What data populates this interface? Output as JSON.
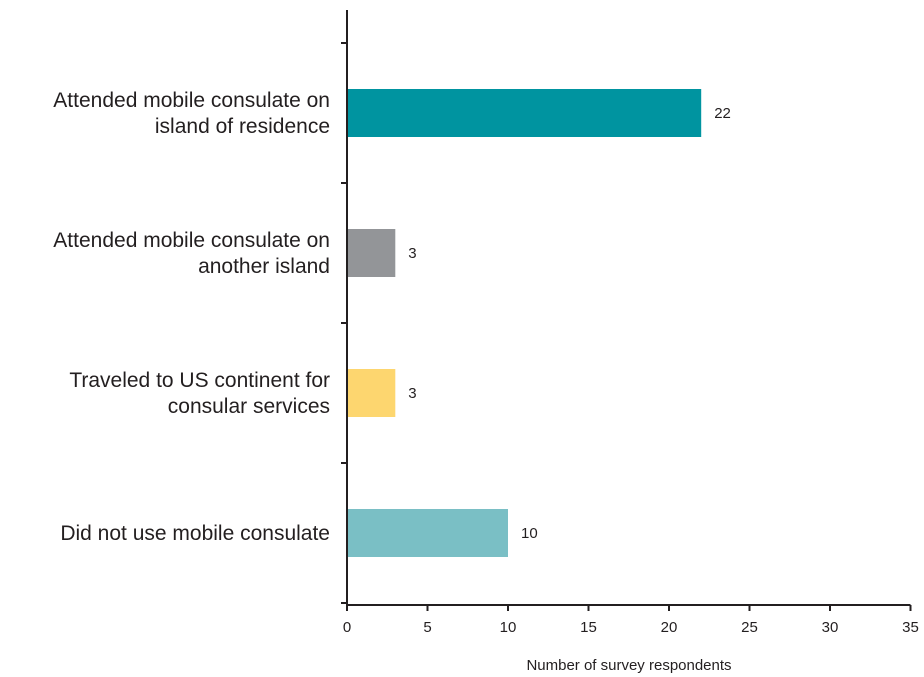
{
  "chart_data": {
    "type": "bar",
    "orientation": "horizontal",
    "title": "",
    "xlabel": "Number of survey respondents",
    "ylabel": "",
    "xlim": [
      0,
      35
    ],
    "x_ticks": [
      "0",
      "5",
      "10",
      "15",
      "20",
      "25",
      "30",
      "35"
    ],
    "grid": false,
    "legend": "none",
    "categories": [
      [
        "Attended mobile consulate on",
        "island of residence"
      ],
      [
        "Attended mobile consulate on",
        "another island"
      ],
      [
        "Traveled to US continent for",
        "consular services"
      ],
      [
        "Did not use mobile consulate"
      ]
    ],
    "values": [
      22,
      3,
      3,
      10
    ],
    "value_labels": [
      "22",
      "3",
      "3",
      "10"
    ],
    "colors": [
      "#0094a0",
      "#939598",
      "#fdd66f",
      "#7abfc5"
    ]
  }
}
